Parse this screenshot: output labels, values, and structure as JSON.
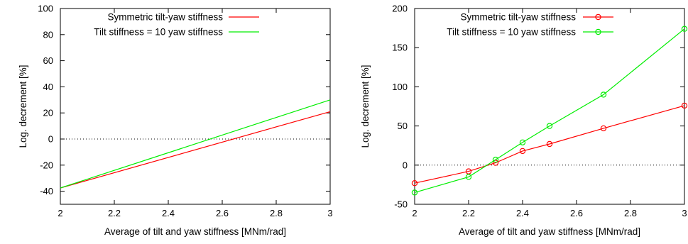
{
  "chart_data": [
    {
      "type": "line",
      "title": "",
      "xlabel": "Average of tilt and yaw stiffness [MNm/rad]",
      "ylabel": "Log. decrement [%]",
      "xlim": [
        2,
        3
      ],
      "ylim": [
        -50,
        100
      ],
      "x_ticks": [
        "2",
        "2.2",
        "2.4",
        "2.6",
        "2.8",
        "3"
      ],
      "y_ticks": [
        "-40",
        "-20",
        "0",
        "20",
        "40",
        "60",
        "80",
        "100"
      ],
      "x_tick_values": [
        2,
        2.2,
        2.4,
        2.6,
        2.8,
        3
      ],
      "y_tick_values": [
        -40,
        -20,
        0,
        20,
        40,
        60,
        80,
        100
      ],
      "zero_line": true,
      "legend_position": "top-left",
      "markers": false,
      "series": [
        {
          "name": "Symmetric tilt-yaw stiffness",
          "color": "#ff0000",
          "x": [
            2,
            3
          ],
          "y": [
            -37.5,
            21
          ]
        },
        {
          "name": "Tilt stiffness = 10 yaw stiffness",
          "color": "#00ee00",
          "x": [
            2,
            3
          ],
          "y": [
            -37.5,
            30
          ]
        }
      ]
    },
    {
      "type": "line",
      "title": "",
      "xlabel": "Average of tilt and yaw stiffness [MNm/rad]",
      "ylabel": "Log. decrement [%]",
      "xlim": [
        2,
        3
      ],
      "ylim": [
        -50,
        200
      ],
      "x_ticks": [
        "2",
        "2.2",
        "2.4",
        "2.6",
        "2.8",
        "3"
      ],
      "y_ticks": [
        "-50",
        "0",
        "50",
        "100",
        "150",
        "200"
      ],
      "x_tick_values": [
        2,
        2.2,
        2.4,
        2.6,
        2.8,
        3
      ],
      "y_tick_values": [
        -50,
        0,
        50,
        100,
        150,
        200
      ],
      "zero_line": true,
      "legend_position": "top-left",
      "markers": true,
      "series": [
        {
          "name": "Symmetric tilt-yaw stiffness",
          "color": "#ff0000",
          "x": [
            2,
            2.2,
            2.3,
            2.4,
            2.5,
            2.7,
            3
          ],
          "y": [
            -23,
            -8,
            3,
            18,
            27,
            47,
            76
          ]
        },
        {
          "name": "Tilt stiffness = 10 yaw stiffness",
          "color": "#00ee00",
          "x": [
            2,
            2.2,
            2.3,
            2.4,
            2.5,
            2.7,
            3
          ],
          "y": [
            -35,
            -15,
            7,
            29,
            50,
            90,
            174
          ]
        }
      ]
    }
  ]
}
